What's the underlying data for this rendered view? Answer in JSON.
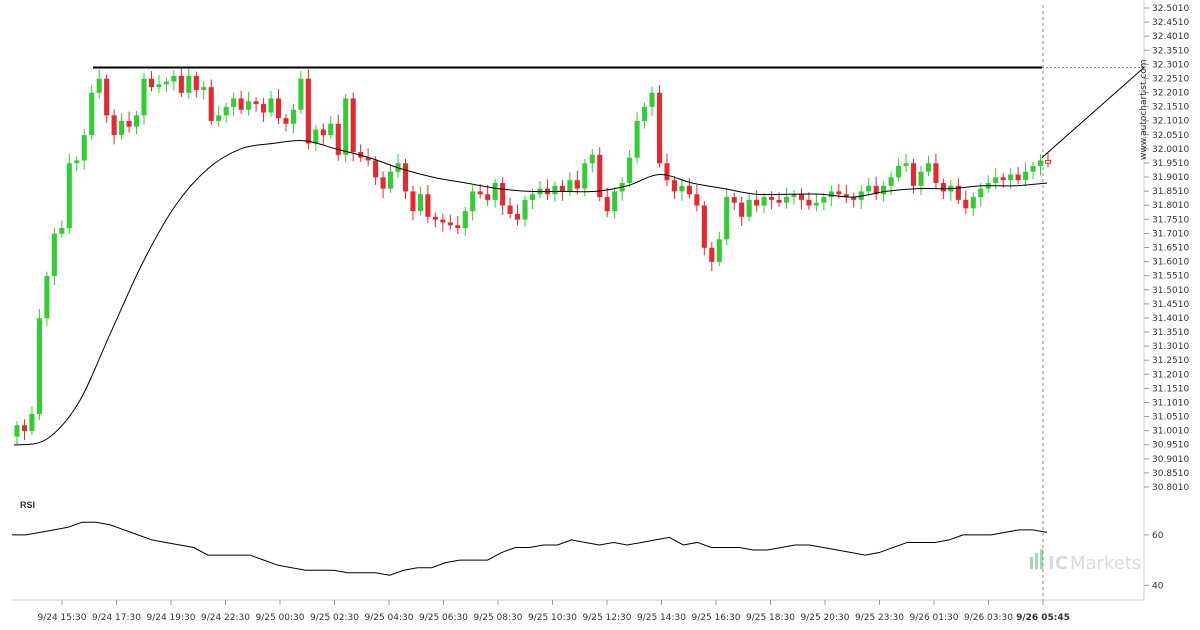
{
  "chart_data": {
    "type": "candlestick",
    "price_axis": {
      "min": 30.801,
      "max": 32.501,
      "ticks": [
        "32.5010",
        "32.4510",
        "32.4010",
        "32.3510",
        "32.3010",
        "32.2510",
        "32.2010",
        "32.1510",
        "32.1010",
        "32.0510",
        "32.0010",
        "31.9510",
        "31.9010",
        "31.8510",
        "31.8010",
        "31.7510",
        "31.7010",
        "31.6510",
        "31.6010",
        "31.5510",
        "31.5010",
        "31.4510",
        "31.4010",
        "31.3510",
        "31.3010",
        "31.2510",
        "31.2010",
        "31.1510",
        "31.1010",
        "31.0510",
        "31.0010",
        "30.9510",
        "30.9010",
        "30.8510",
        "30.8010"
      ]
    },
    "time_labels": [
      "9/24 15:30",
      "9/24 17:30",
      "9/24 19:30",
      "9/24 22:30",
      "9/25 00:30",
      "9/25 02:30",
      "9/25 04:30",
      "9/25 06:30",
      "9/25 08:30",
      "9/25 10:30",
      "9/25 12:30",
      "9/25 14:30",
      "9/25 16:30",
      "9/25 18:30",
      "9/25 20:30",
      "9/25 23:30",
      "9/26 01:30",
      "9/26 03:30",
      "9/26 05:45"
    ],
    "resistance_level": 32.29,
    "projection": {
      "from": 31.97,
      "to": 32.29
    },
    "close": [
      31.02,
      31.0,
      31.06,
      31.4,
      31.55,
      31.7,
      31.72,
      31.95,
      31.96,
      32.05,
      32.2,
      32.25,
      32.12,
      32.05,
      32.1,
      32.08,
      32.12,
      32.25,
      32.22,
      32.23,
      32.24,
      32.26,
      32.2,
      32.26,
      32.21,
      32.22,
      32.1,
      32.12,
      32.15,
      32.18,
      32.14,
      32.17,
      32.16,
      32.13,
      32.18,
      32.11,
      32.09,
      32.14,
      32.25,
      32.02,
      32.07,
      32.05,
      32.09,
      31.98,
      32.18,
      31.99,
      31.97,
      31.96,
      31.9,
      31.86,
      31.92,
      31.95,
      31.85,
      31.78,
      31.84,
      31.76,
      31.75,
      31.74,
      31.73,
      31.72,
      31.78,
      31.85,
      31.84,
      31.82,
      31.88,
      31.8,
      31.77,
      31.75,
      31.82,
      31.84,
      31.86,
      31.84,
      31.87,
      31.85,
      31.89,
      31.86,
      31.95,
      31.98,
      31.83,
      31.78,
      31.85,
      31.88,
      31.97,
      32.1,
      32.15,
      32.2,
      31.95,
      31.89,
      31.85,
      31.87,
      31.84,
      31.8,
      31.65,
      31.6,
      31.68,
      31.83,
      31.81,
      31.76,
      31.82,
      31.8,
      31.83,
      31.82,
      31.81,
      31.83,
      31.84,
      31.82,
      31.8,
      31.81,
      31.83,
      31.85,
      31.84,
      31.83,
      31.82,
      31.85,
      31.87,
      31.84,
      31.87,
      31.9,
      31.94,
      31.95,
      31.87,
      31.92,
      31.95,
      31.88,
      31.85,
      31.87,
      31.82,
      31.79,
      31.83,
      31.86,
      31.88,
      31.9,
      31.89,
      31.91,
      31.89,
      31.92,
      31.94,
      31.96,
      31.95
    ],
    "ma_anchor_values": [
      30.95,
      30.97,
      31.1,
      31.35,
      31.6,
      31.8,
      31.93,
      32.0,
      32.02,
      32.03,
      32.0,
      31.97,
      31.93,
      31.9,
      31.88,
      31.86,
      31.85,
      31.85,
      31.85,
      31.87,
      31.91,
      31.88,
      31.86,
      31.84,
      31.84,
      31.84,
      31.83,
      31.85,
      31.86,
      31.86,
      31.87,
      31.87,
      31.88
    ],
    "rsi": {
      "title": "RSI",
      "ticks": [
        "60",
        "40"
      ],
      "min": 35,
      "max": 75,
      "values": [
        60,
        60,
        61,
        62,
        63,
        65,
        65,
        64,
        62,
        60,
        58,
        57,
        56,
        55,
        52,
        52,
        52,
        52,
        50,
        48,
        47,
        46,
        46,
        46,
        45,
        45,
        45,
        44,
        46,
        47,
        47,
        49,
        50,
        50,
        50,
        53,
        55,
        55,
        56,
        56,
        58,
        57,
        56,
        57,
        56,
        57,
        58,
        59,
        56,
        57,
        55,
        55,
        55,
        54,
        54,
        55,
        56,
        56,
        55,
        54,
        53,
        52,
        53,
        55,
        57,
        57,
        57,
        58,
        60,
        60,
        60,
        61,
        62,
        62,
        61
      ]
    }
  },
  "watermark": "www.autochartist.com",
  "brand": {
    "prefix": "IC",
    "suffix": "Markets"
  },
  "colors": {
    "up": "#32cd32",
    "down": "#e8282f",
    "ma": "#000000",
    "grid": "#dddddd"
  }
}
